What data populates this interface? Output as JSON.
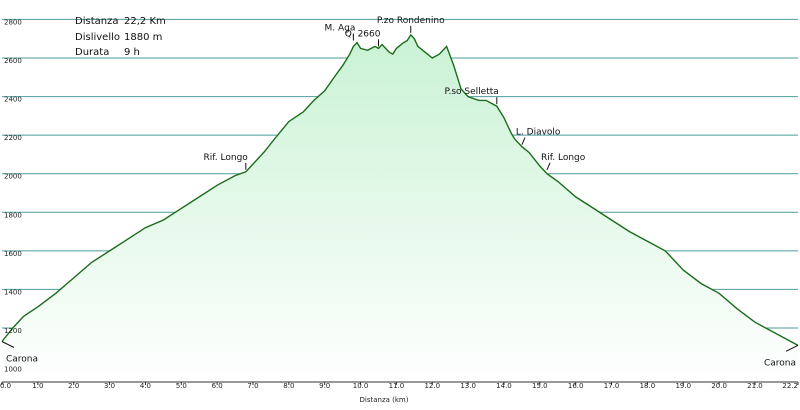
{
  "info": {
    "distance_label": "Distanza",
    "distance_value": "22,2 Km",
    "elevation_label": "Dislivello",
    "elevation_value": "1880 m",
    "duration_label": "Durata",
    "duration_value": "9 h"
  },
  "chart_data": {
    "type": "area",
    "xlabel": "Distanza  (km)",
    "ylabel": "",
    "xlim": [
      0,
      22.2
    ],
    "ylim": [
      920,
      2880
    ],
    "x_ticks": [
      "0.0",
      "1.0",
      "2.0",
      "3.0",
      "4.0",
      "5.0",
      "6.0",
      "7.0",
      "8.0",
      "9.0",
      "10.0",
      "11.0",
      "12.0",
      "13.0",
      "14.0",
      "15.0",
      "16.0",
      "17.0",
      "18.0",
      "19.0",
      "20.0",
      "21.0",
      "22.2"
    ],
    "y_ticks": [
      "1000",
      "1200",
      "1400",
      "1600",
      "1800",
      "2000",
      "2200",
      "2400",
      "2600",
      "2800"
    ],
    "grid": true,
    "colors": {
      "line": "#1a6b1a",
      "fill_top": "#c9f2d4",
      "fill_bottom": "#ffffff",
      "grid": "#2f8a8a"
    },
    "series": [
      {
        "x": [
          0.0,
          0.3,
          0.6,
          1.0,
          1.5,
          2.0,
          2.5,
          3.0,
          3.5,
          4.0,
          4.5,
          5.0,
          5.5,
          6.0,
          6.5,
          6.8,
          7.0,
          7.3,
          7.6,
          8.0,
          8.4,
          8.7,
          9.0,
          9.3,
          9.5,
          9.7,
          9.8,
          9.9,
          10.0,
          10.2,
          10.4,
          10.5,
          10.6,
          10.8,
          10.9,
          11.0,
          11.2,
          11.3,
          11.4,
          11.5,
          11.6,
          11.8,
          12.0,
          12.2,
          12.4,
          12.6,
          12.8,
          13.0,
          13.3,
          13.5,
          13.8,
          14.0,
          14.2,
          14.3,
          14.5,
          14.7,
          15.0,
          15.2,
          15.5,
          16.0,
          16.5,
          17.0,
          17.5,
          18.0,
          18.5,
          19.0,
          19.5,
          20.0,
          20.5,
          21.0,
          21.5,
          22.0,
          22.2
        ],
        "y": [
          1130,
          1200,
          1260,
          1310,
          1380,
          1460,
          1540,
          1600,
          1660,
          1720,
          1760,
          1820,
          1880,
          1940,
          1990,
          2010,
          2050,
          2110,
          2180,
          2270,
          2320,
          2380,
          2430,
          2510,
          2560,
          2620,
          2660,
          2680,
          2650,
          2640,
          2660,
          2650,
          2670,
          2630,
          2620,
          2650,
          2680,
          2690,
          2720,
          2700,
          2660,
          2630,
          2600,
          2620,
          2660,
          2560,
          2440,
          2400,
          2380,
          2380,
          2350,
          2290,
          2210,
          2180,
          2140,
          2110,
          2040,
          2000,
          1960,
          1880,
          1820,
          1760,
          1700,
          1650,
          1600,
          1500,
          1430,
          1380,
          1300,
          1230,
          1180,
          1130,
          1110
        ]
      }
    ],
    "annotations": [
      {
        "label": "Carona",
        "x": 0.0,
        "y": 1130,
        "pos": "below-right"
      },
      {
        "label": "Rif. Longo",
        "x": 6.8,
        "y": 2010,
        "pos": "above-left"
      },
      {
        "label": "M. Aga",
        "x": 9.8,
        "y": 2680,
        "pos": "above-left"
      },
      {
        "label": "Q. 2660",
        "x": 10.5,
        "y": 2650,
        "pos": "above-left"
      },
      {
        "label": "P.zo Rondenino",
        "x": 11.4,
        "y": 2720,
        "pos": "above"
      },
      {
        "label": "P.so Selletta",
        "x": 13.8,
        "y": 2350,
        "pos": "above-left"
      },
      {
        "label": "L. Diavolo",
        "x": 14.5,
        "y": 2140,
        "pos": "above-right"
      },
      {
        "label": "Rif. Longo",
        "x": 15.2,
        "y": 2010,
        "pos": "above-right"
      },
      {
        "label": "Carona",
        "x": 22.2,
        "y": 1110,
        "pos": "below-left"
      }
    ]
  }
}
